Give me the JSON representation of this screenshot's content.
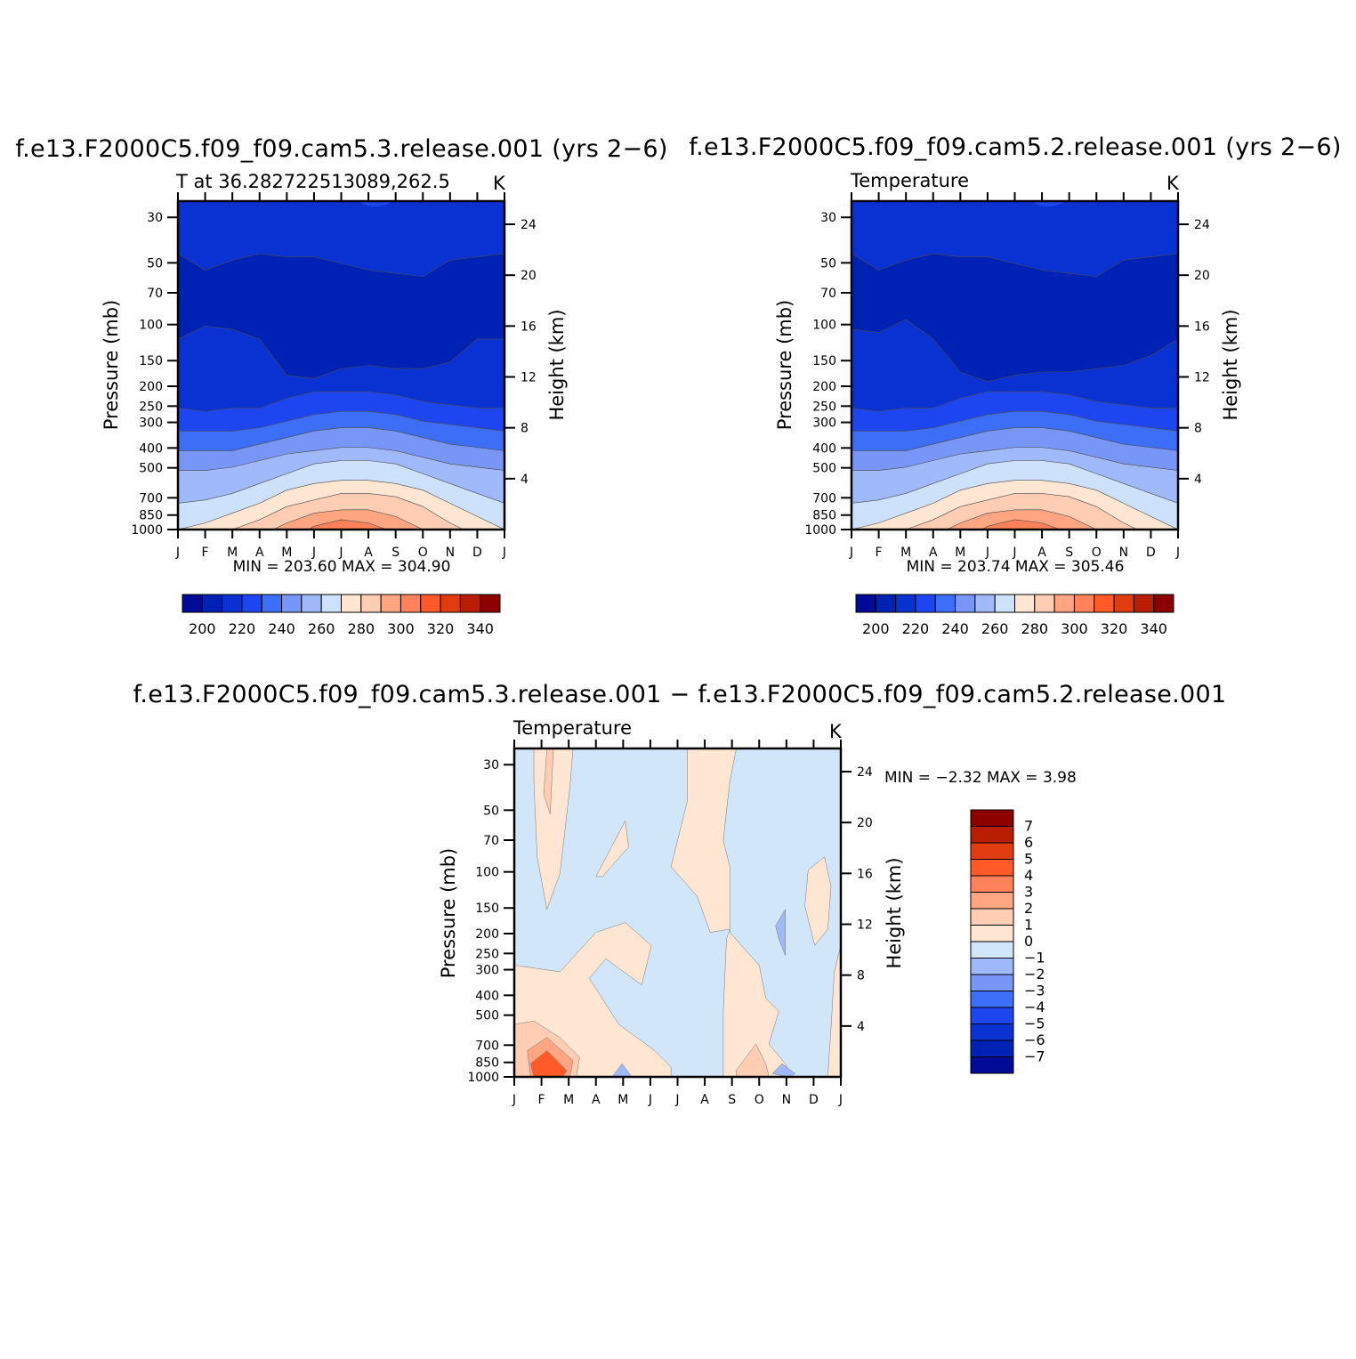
{
  "panels": [
    {
      "id": "top-left",
      "title": "f.e13.F2000C5.f09_f09.cam5.3.release.001  (yrs 2−6)",
      "subtitle_left": "T at  36.282722513089,262.5",
      "subtitle_right": "K",
      "ylabel_left": "Pressure  (mb)",
      "ylabel_right": "Height  (km)",
      "min_max": "MIN  =  203.60  MAX  =  304.90"
    },
    {
      "id": "top-right",
      "title": "f.e13.F2000C5.f09_f09.cam5.2.release.001  (yrs 2−6)",
      "subtitle_left": "Temperature",
      "subtitle_right": "K",
      "ylabel_left": "Pressure  (mb)",
      "ylabel_right": "Height  (km)",
      "min_max": "MIN  =  203.74  MAX  =  305.46"
    },
    {
      "id": "bottom",
      "title": "f.e13.F2000C5.f09_f09.cam5.3.release.001  −  f.e13.F2000C5.f09_f09.cam5.2.release.001",
      "subtitle_left": "Temperature",
      "subtitle_right": "K",
      "ylabel_left": "Pressure  (mb)",
      "ylabel_right": "Height  (km)",
      "min_max": "MIN  =    −2.32  MAX  =     3.98"
    }
  ],
  "chart_data": [
    {
      "type": "heatmap",
      "title": "f.e13.F2000C5.f09_f09.cam5.3.release.001  (yrs 2−6)",
      "subtitle": "T at  36.282722513089,262.5",
      "units": "K",
      "x_ticks": [
        "J",
        "F",
        "M",
        "A",
        "M",
        "J",
        "J",
        "A",
        "S",
        "O",
        "N",
        "D",
        "J"
      ],
      "y_ticks_pressure": [
        30,
        50,
        70,
        100,
        150,
        200,
        250,
        300,
        400,
        500,
        700,
        850,
        1000
      ],
      "y_ticks_height": [
        24,
        20,
        16,
        12,
        8,
        4
      ],
      "yscale": "log",
      "ylim": [
        1000,
        25
      ],
      "colorbar_levels": [
        200,
        220,
        240,
        260,
        280,
        300,
        320,
        340
      ],
      "min": 203.6,
      "max": 304.9
    },
    {
      "type": "heatmap",
      "title": "f.e13.F2000C5.f09_f09.cam5.2.release.001  (yrs 2−6)",
      "subtitle": "Temperature",
      "units": "K",
      "x_ticks": [
        "J",
        "F",
        "M",
        "A",
        "M",
        "J",
        "J",
        "A",
        "S",
        "O",
        "N",
        "D",
        "J"
      ],
      "y_ticks_pressure": [
        30,
        50,
        70,
        100,
        150,
        200,
        250,
        300,
        400,
        500,
        700,
        850,
        1000
      ],
      "y_ticks_height": [
        24,
        20,
        16,
        12,
        8,
        4
      ],
      "yscale": "log",
      "ylim": [
        1000,
        25
      ],
      "colorbar_levels": [
        200,
        220,
        240,
        260,
        280,
        300,
        320,
        340
      ],
      "min": 203.74,
      "max": 305.46
    },
    {
      "type": "heatmap",
      "title": "f.e13.F2000C5.f09_f09.cam5.3.release.001  −  f.e13.F2000C5.f09_f09.cam5.2.release.001",
      "subtitle": "Temperature",
      "units": "K",
      "x_ticks": [
        "J",
        "F",
        "M",
        "A",
        "M",
        "J",
        "J",
        "A",
        "S",
        "O",
        "N",
        "D",
        "J"
      ],
      "y_ticks_pressure": [
        30,
        50,
        70,
        100,
        150,
        200,
        250,
        300,
        400,
        500,
        700,
        850,
        1000
      ],
      "y_ticks_height": [
        24,
        20,
        16,
        12,
        8,
        4
      ],
      "yscale": "log",
      "ylim": [
        1000,
        25
      ],
      "colorbar_levels": [
        7,
        6,
        5,
        4,
        3,
        2,
        1,
        0,
        -1,
        -2,
        -3,
        -4,
        -5,
        -6,
        -7
      ],
      "min": -2.32,
      "max": 3.98
    }
  ],
  "colormaps": {
    "abs": [
      "#000a96",
      "#0022b4",
      "#0a32d2",
      "#1e46f0",
      "#3c6ef8",
      "#7896f8",
      "#a0b9fa",
      "#cde1fa",
      "#ffe6d2",
      "#ffcdb4",
      "#ffa582",
      "#ff825a",
      "#ff5a28",
      "#e13c0f",
      "#b91e00",
      "#8c0000"
    ],
    "diff": [
      "#8c0000",
      "#b91e00",
      "#e13c0f",
      "#ff5a28",
      "#ff825a",
      "#ffa582",
      "#ffcdb4",
      "#ffe6d2",
      "#d2e6fa",
      "#a0b9fa",
      "#7896f8",
      "#3c6ef8",
      "#1e46f0",
      "#0a32d2",
      "#0022b4",
      "#000a96"
    ]
  }
}
